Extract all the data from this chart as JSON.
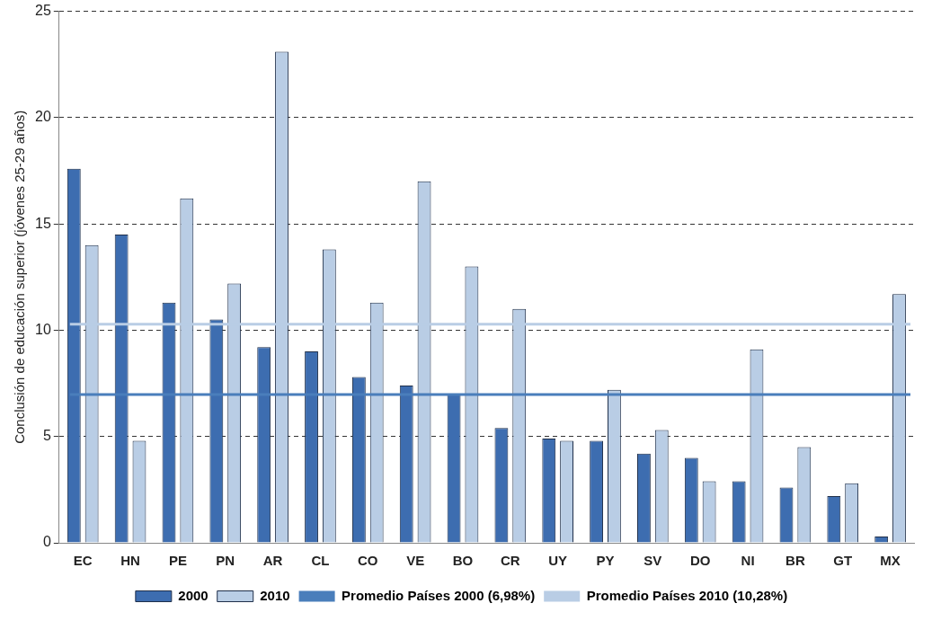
{
  "chart_data": {
    "type": "bar",
    "ylabel": "Conclusión de educación superior (jóvenes 25-29 años)",
    "categories": [
      "EC",
      "HN",
      "PE",
      "PN",
      "AR",
      "CL",
      "CO",
      "VE",
      "BO",
      "CR",
      "UY",
      "PY",
      "SV",
      "DO",
      "NI",
      "BR",
      "GT",
      "MX"
    ],
    "series": [
      {
        "name": "2000",
        "color": "#3d6db0",
        "values": [
          17.6,
          14.5,
          11.3,
          10.5,
          9.2,
          9.0,
          7.8,
          7.4,
          7.0,
          5.4,
          4.9,
          4.8,
          4.2,
          4.0,
          2.9,
          2.6,
          2.2,
          0.3
        ]
      },
      {
        "name": "2010",
        "color": "#b9cde5",
        "values": [
          14.0,
          4.8,
          16.2,
          12.2,
          23.1,
          13.8,
          11.3,
          17.0,
          13.0,
          11.0,
          4.8,
          7.2,
          5.3,
          2.9,
          9.1,
          4.5,
          2.8,
          11.7
        ]
      }
    ],
    "ref_lines": [
      {
        "axis": "y",
        "value": 6.98,
        "label": "Promedio Países 2000 (6,98%)",
        "color": "#4a7ebb"
      },
      {
        "axis": "y",
        "value": 10.28,
        "label": "Promedio Países 2010 (10,28%)",
        "color": "#b9cde5"
      }
    ],
    "ylim": [
      0,
      25
    ],
    "yticks": [
      0,
      5,
      10,
      15,
      20,
      25
    ],
    "grid": "y",
    "legend": "bottom"
  }
}
